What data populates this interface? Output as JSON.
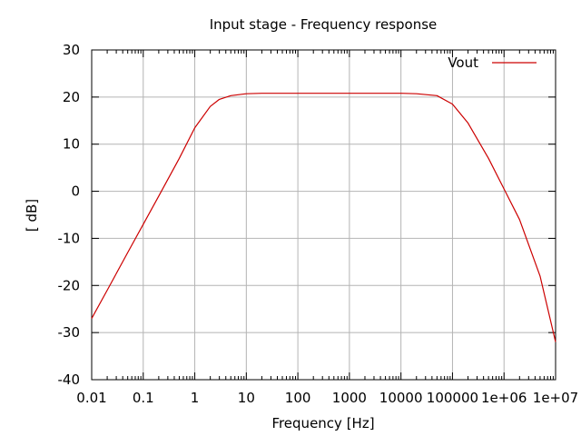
{
  "chart_data": {
    "type": "line",
    "title": "Input stage - Frequency response",
    "xlabel": "Frequency [Hz]",
    "ylabel": "[ dB]",
    "xscale": "log",
    "xlim": [
      0.01,
      10000000
    ],
    "ylim": [
      -40,
      30
    ],
    "grid": true,
    "legend_position": "top-right",
    "x_ticks": [
      {
        "value": 0.01,
        "label": "0.01"
      },
      {
        "value": 0.1,
        "label": "0.1"
      },
      {
        "value": 1,
        "label": "1"
      },
      {
        "value": 10,
        "label": "10"
      },
      {
        "value": 100,
        "label": "100"
      },
      {
        "value": 1000,
        "label": "1000"
      },
      {
        "value": 10000,
        "label": "10000"
      },
      {
        "value": 100000,
        "label": "100000"
      },
      {
        "value": 1000000,
        "label": "1e+06"
      },
      {
        "value": 10000000,
        "label": "1e+07"
      }
    ],
    "y_ticks": [
      {
        "value": 30,
        "label": "30"
      },
      {
        "value": 20,
        "label": "20"
      },
      {
        "value": 10,
        "label": "10"
      },
      {
        "value": 0,
        "label": "0"
      },
      {
        "value": -10,
        "label": "-10"
      },
      {
        "value": -20,
        "label": "-20"
      },
      {
        "value": -30,
        "label": "-30"
      },
      {
        "value": -40,
        "label": "-40"
      }
    ],
    "series": [
      {
        "name": "Vout",
        "color": "#cc0000",
        "x": [
          0.01,
          0.02,
          0.05,
          0.1,
          0.2,
          0.5,
          1,
          2,
          3,
          5,
          10,
          20,
          50,
          100,
          1000,
          10000,
          20000,
          50000,
          100000,
          200000,
          500000,
          1000000,
          2000000,
          5000000,
          10000000
        ],
        "y": [
          -27,
          -21,
          -13,
          -7,
          -1,
          7,
          13.5,
          18,
          19.5,
          20.3,
          20.7,
          20.8,
          20.8,
          20.8,
          20.8,
          20.8,
          20.7,
          20.3,
          18.5,
          14.5,
          7,
          0.5,
          -6,
          -18,
          -32
        ]
      }
    ]
  }
}
